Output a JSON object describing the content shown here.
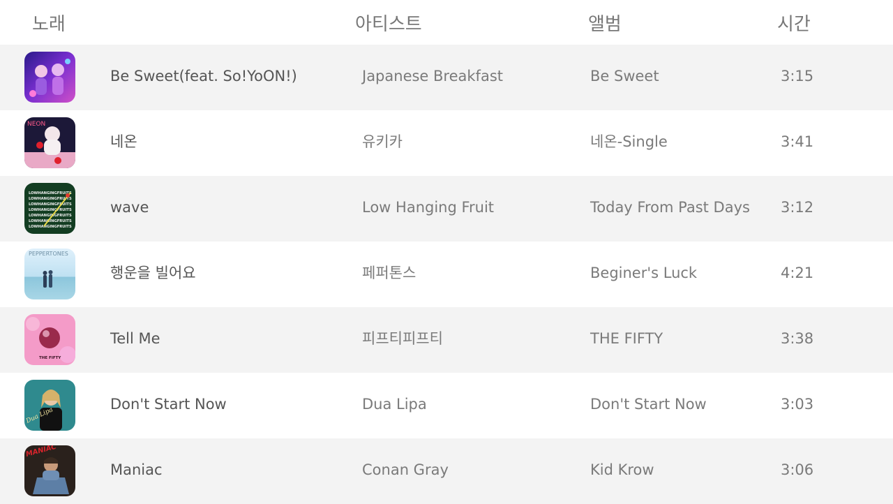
{
  "header": {
    "song": "노래",
    "artist": "아티스트",
    "album": "앨범",
    "time": "시간"
  },
  "tracks": [
    {
      "title": "Be Sweet(feat. So!YoON!)",
      "artist": "Japanese Breakfast",
      "album": "Be Sweet",
      "time": "3:15"
    },
    {
      "title": "네온",
      "artist": "유키카",
      "album": "네온-Single",
      "time": "3:41",
      "art_text": "NEON"
    },
    {
      "title": "wave",
      "artist": "Low Hanging Fruit",
      "album": "Today From Past Days",
      "time": "3:12",
      "art_text": "LOWHANGINGFRUITS"
    },
    {
      "title": "행운을 빌어요",
      "artist": "페퍼톤스",
      "album": "Beginer's Luck",
      "time": "4:21",
      "art_text": "PEPPERTONES"
    },
    {
      "title": "Tell Me",
      "artist": "피프티피프티",
      "album": "THE FIFTY",
      "time": "3:38",
      "art_text": "THE FIFTY"
    },
    {
      "title": "Don't Start Now",
      "artist": "Dua Lipa",
      "album": "Don't Start Now",
      "time": "3:03",
      "art_text": "Dua Lipa"
    },
    {
      "title": "Maniac",
      "artist": "Conan Gray",
      "album": "Kid Krow",
      "time": "3:06",
      "art_text": "MANIAC"
    }
  ],
  "colors": {
    "row_shade": "#f3f3f3",
    "row_plain": "#ffffff",
    "title_text": "#555555",
    "secondary_text": "#7a7a7a"
  }
}
